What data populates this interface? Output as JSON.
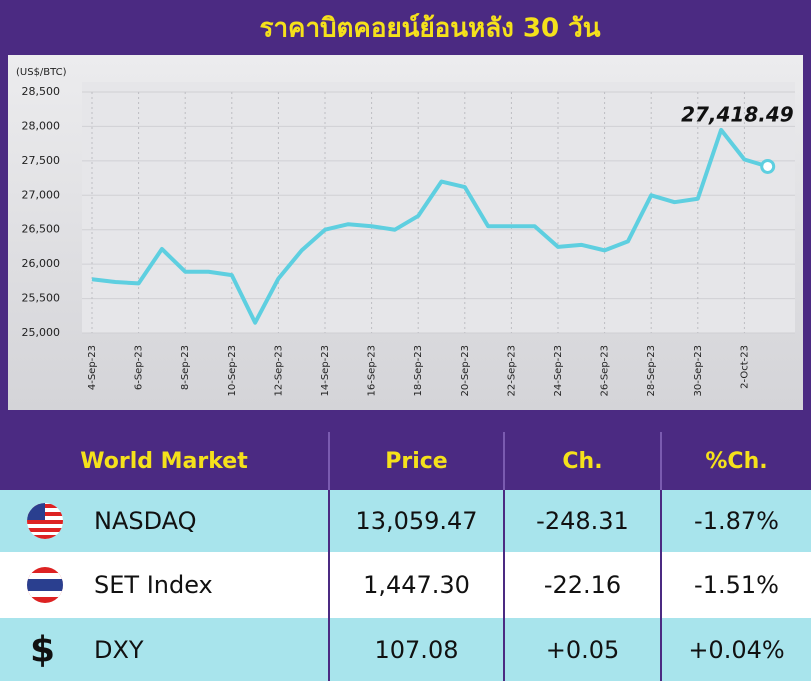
{
  "chart_data": {
    "type": "line",
    "title": "ราคาบิตคอยน์ย้อนหลัง 30 วัน",
    "y_label": "(US$/BTC)",
    "categories": [
      "4-Sep-23",
      null,
      "6-Sep-23",
      null,
      "8-Sep-23",
      null,
      "10-Sep-23",
      null,
      "12-Sep-23",
      null,
      "14-Sep-23",
      null,
      "16-Sep-23",
      null,
      "18-Sep-23",
      null,
      "20-Sep-23",
      null,
      "22-Sep-23",
      null,
      "24-Sep-23",
      null,
      "26-Sep-23",
      null,
      "28-Sep-23",
      null,
      "30-Sep-23",
      null,
      "2-Oct-23",
      null
    ],
    "values": [
      25780,
      25740,
      25720,
      26220,
      25890,
      25890,
      25840,
      25150,
      25790,
      26200,
      26500,
      26580,
      26550,
      26500,
      26700,
      27200,
      27120,
      26550,
      26550,
      26550,
      26250,
      26280,
      26200,
      26330,
      27000,
      26900,
      26950,
      27950,
      27520,
      27418.49
    ],
    "color": "#5ecfe0",
    "annotation": "27,418.49",
    "ylim": [
      25000,
      28500
    ],
    "yticks": [
      {
        "value": 25000,
        "label": "25,000"
      },
      {
        "value": 25500,
        "label": "25,500"
      },
      {
        "value": 26000,
        "label": "26,000"
      },
      {
        "value": 26500,
        "label": "26,500"
      },
      {
        "value": 27000,
        "label": "27,000"
      },
      {
        "value": 27500,
        "label": "27,500"
      },
      {
        "value": 28000,
        "label": "28,000"
      },
      {
        "value": 28500,
        "label": "28,500"
      }
    ],
    "grid": true
  },
  "table": {
    "header": [
      "World Market",
      "Price",
      "Ch.",
      "%Ch."
    ],
    "rows": [
      [
        "NASDAQ",
        "13,059.47",
        "-248.31",
        "-1.87%"
      ],
      [
        "SET Index",
        "1,447.30",
        "-22.16",
        "-1.51%"
      ],
      [
        "DXY",
        "107.08",
        "+0.05",
        "+0.04%"
      ]
    ],
    "symbol": "$"
  }
}
